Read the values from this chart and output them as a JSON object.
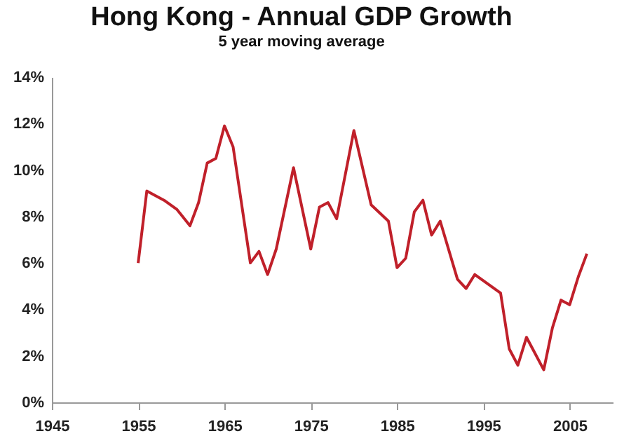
{
  "chart_data": {
    "type": "line",
    "title": "Hong Kong - Annual GDP Growth",
    "subtitle": "5 year moving average",
    "x": [
      1955,
      1956,
      1958,
      1959.5,
      1961,
      1962,
      1963,
      1964,
      1965,
      1966,
      1968,
      1969,
      1970,
      1971,
      1973,
      1975,
      1976,
      1977,
      1978,
      1980,
      1982,
      1984,
      1985,
      1986,
      1987,
      1988,
      1989,
      1990,
      1992,
      1993,
      1994,
      1997,
      1998,
      1999,
      2000,
      2002,
      2003,
      2004,
      2005,
      2006,
      2007
    ],
    "series": [
      {
        "color": "#c0202a",
        "values": [
          6.0,
          9.1,
          8.7,
          8.3,
          7.6,
          8.6,
          10.3,
          10.5,
          11.9,
          11.0,
          6.0,
          6.5,
          5.5,
          6.6,
          10.1,
          6.6,
          8.4,
          8.6,
          7.9,
          11.7,
          8.5,
          7.8,
          5.8,
          6.2,
          8.2,
          8.7,
          7.2,
          7.8,
          5.3,
          4.9,
          5.5,
          4.7,
          2.3,
          1.6,
          2.8,
          1.4,
          3.2,
          4.4,
          4.2,
          5.4,
          6.4
        ]
      }
    ],
    "xlim": [
      1945,
      2010
    ],
    "xticks": [
      1945,
      1955,
      1965,
      1975,
      1985,
      1995,
      2005
    ],
    "ylim": [
      0,
      14
    ],
    "yticks": [
      {
        "value": 0,
        "label": "0%"
      },
      {
        "value": 2,
        "label": "2%"
      },
      {
        "value": 4,
        "label": "4%"
      },
      {
        "value": 6,
        "label": "6%"
      },
      {
        "value": 8,
        "label": "8%"
      },
      {
        "value": 10,
        "label": "10%"
      },
      {
        "value": 12,
        "label": "12%"
      },
      {
        "value": 14,
        "label": "14%"
      }
    ],
    "grid": false,
    "marker": "none",
    "line_style": "solid"
  }
}
